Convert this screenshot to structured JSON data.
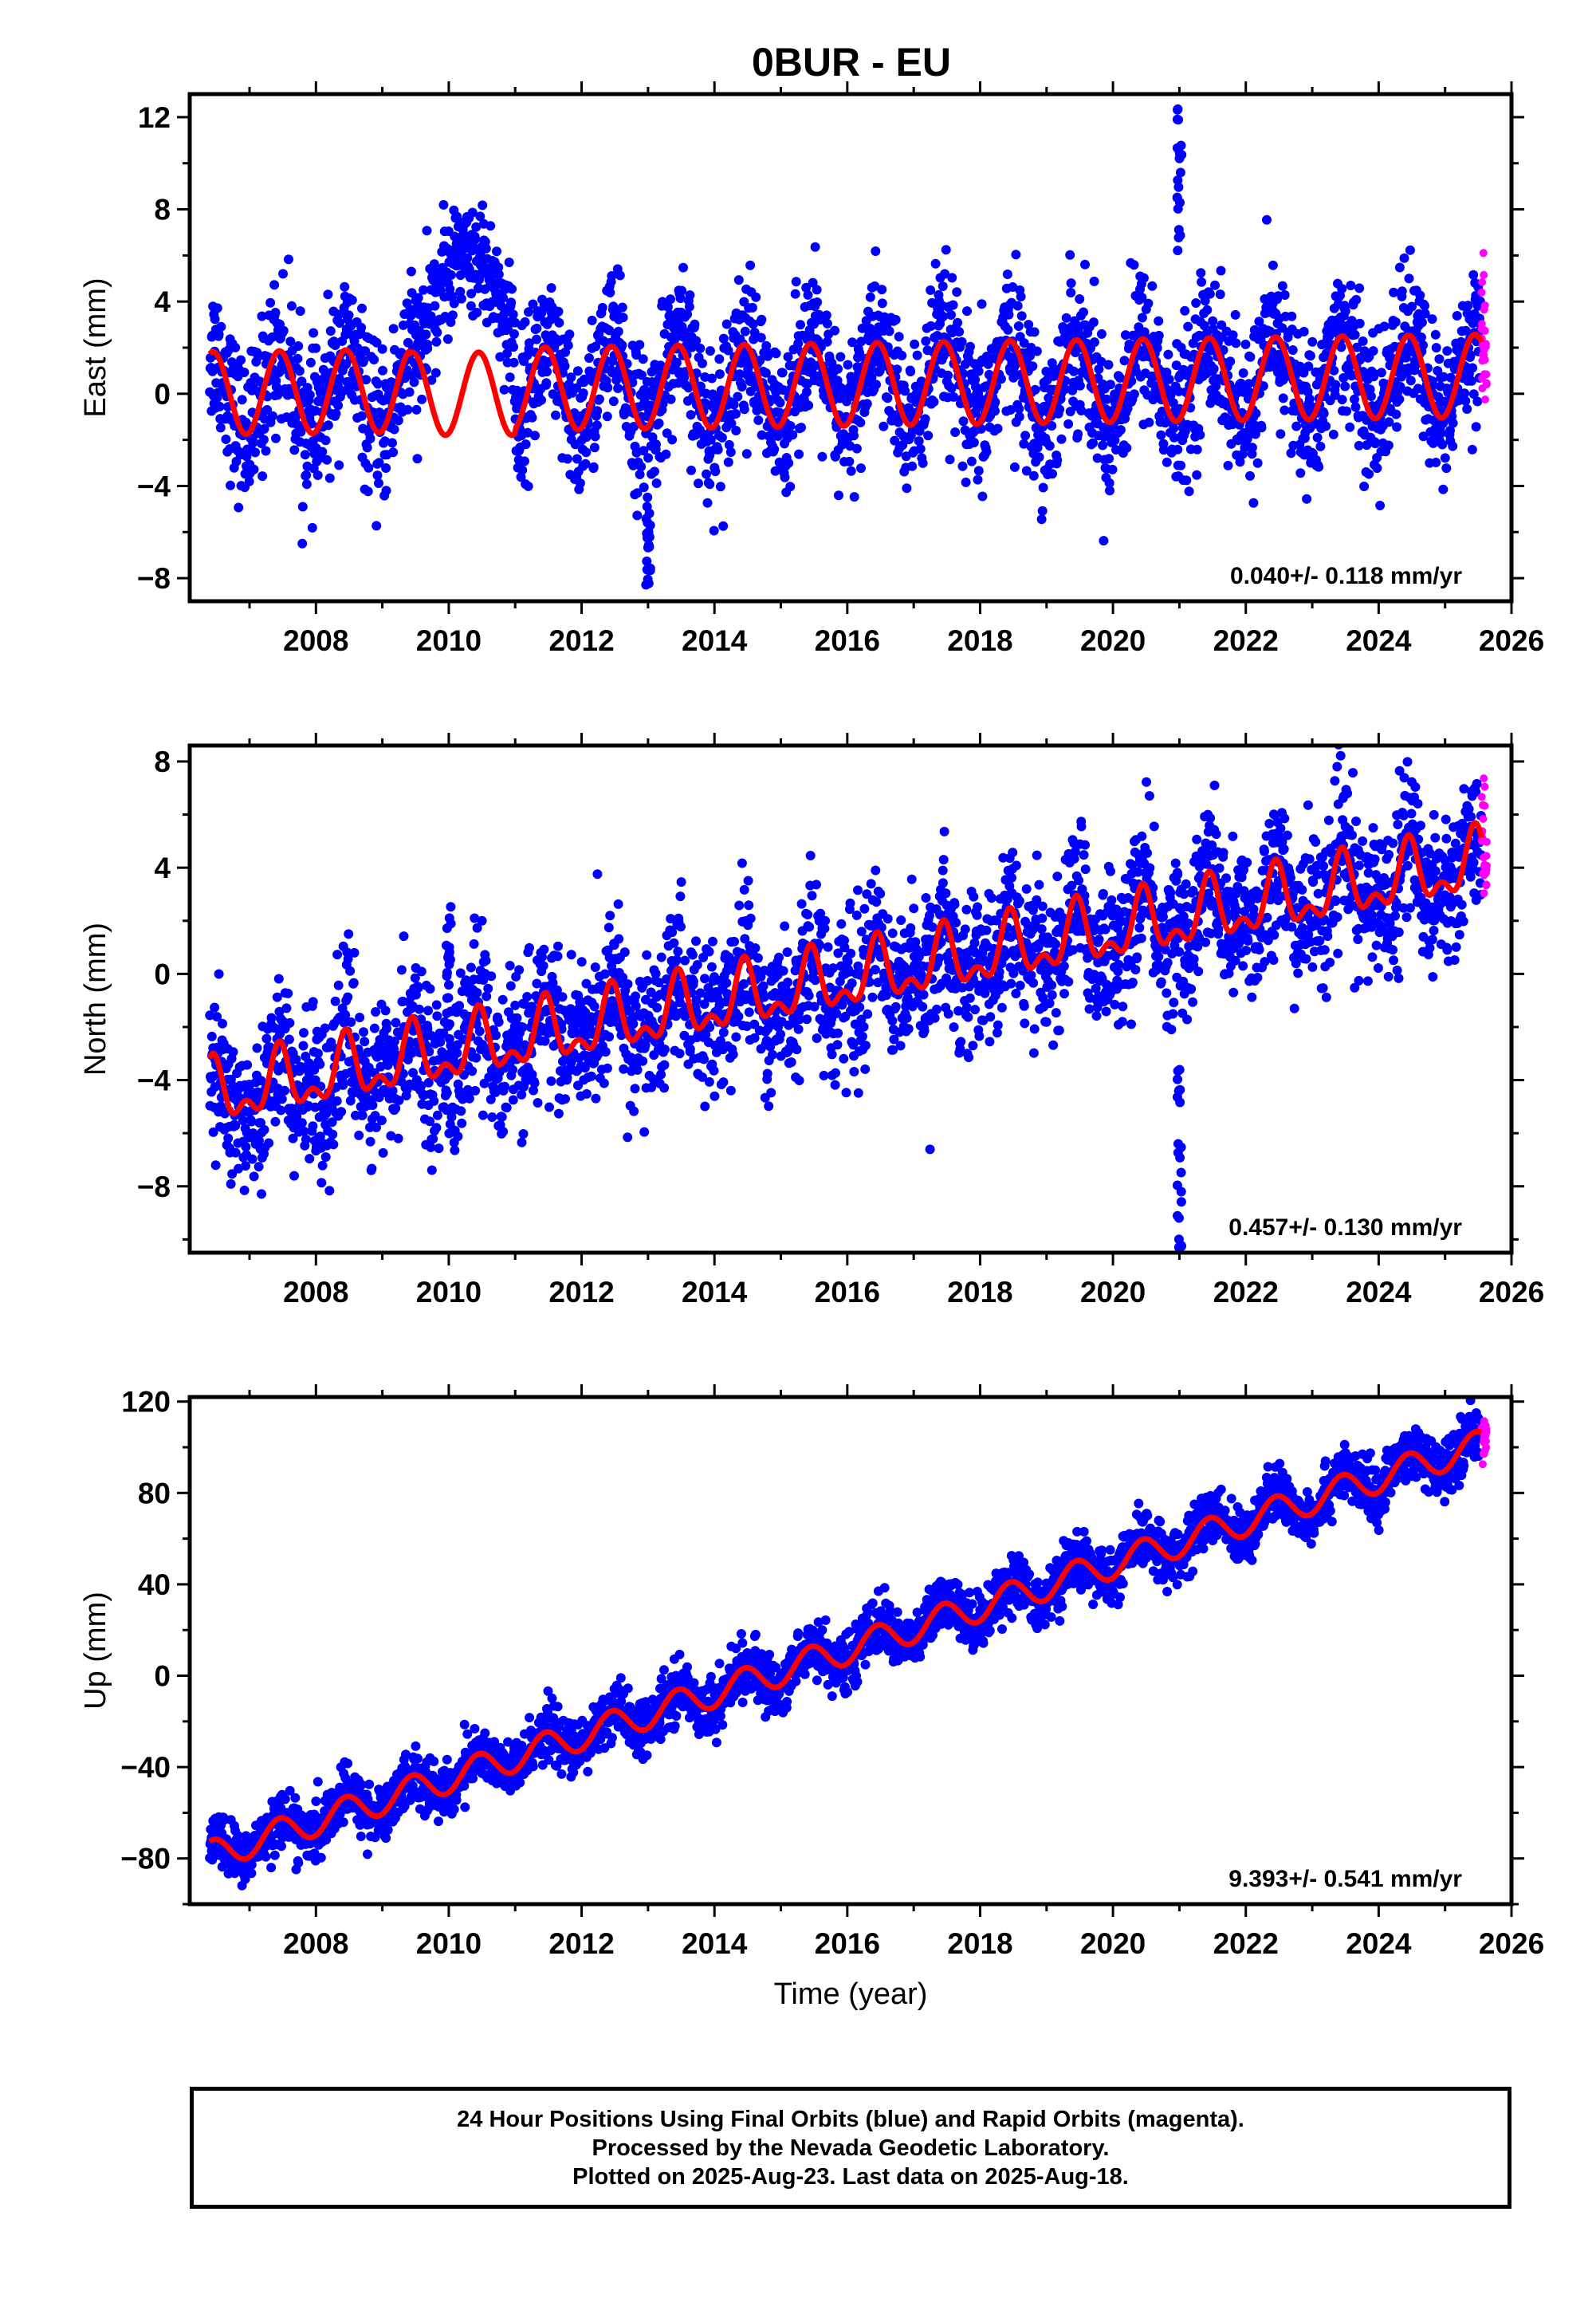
{
  "title": "0BUR - EU",
  "footer": {
    "line1": "24 Hour Positions Using Final Orbits (blue) and Rapid Orbits (magenta).",
    "line2": "Processed by the Nevada Geodetic Laboratory.",
    "line3": "Plotted on 2025-Aug-23. Last data on 2025-Aug-18."
  },
  "colors": {
    "final_orbits": "#0000ff",
    "rapid_orbits": "#ff00ff",
    "model_fit": "#ff0000"
  },
  "chart_data": [
    {
      "type": "scatter",
      "ylabel": "East (mm)",
      "xlabel": "",
      "xlim": [
        2006.1,
        2026.0
      ],
      "ylim": [
        -9,
        13
      ],
      "xticks": [
        2008,
        2010,
        2012,
        2014,
        2016,
        2018,
        2020,
        2022,
        2024,
        2026
      ],
      "yticks": [
        -8,
        -4,
        0,
        4,
        8,
        12
      ],
      "ytick_labels": [
        "−8",
        "−4",
        "0",
        "4",
        "8",
        "12"
      ],
      "rate_label": "0.040+/- 0.118 mm/yr",
      "data_start": 2006.4,
      "data_end_final": 2025.55,
      "data_end_rapid": 2025.63,
      "trend": {
        "slope": 0.04,
        "intercept_2006": 0.0
      },
      "annual_amplitude": 1.8,
      "scatter_sigma": 1.6,
      "fit_gap": [
        2009.4,
        2011.0
      ],
      "offset_event": {
        "start": 2009.6,
        "end": 2011.0,
        "peak": 6.0
      },
      "spikes": [
        {
          "x": 2021.0,
          "ymin": 5.8,
          "ymax": 12.6
        },
        {
          "x": 2013.0,
          "ymin": -8.5,
          "ymax": -4.8
        }
      ],
      "grid": false
    },
    {
      "type": "scatter",
      "ylabel": "North (mm)",
      "xlabel": "",
      "xlim": [
        2006.1,
        2026.0
      ],
      "ylim": [
        -10.5,
        8.6
      ],
      "xticks": [
        2008,
        2010,
        2012,
        2014,
        2016,
        2018,
        2020,
        2022,
        2024,
        2026
      ],
      "yticks": [
        -8,
        -4,
        0,
        4,
        8
      ],
      "ytick_labels": [
        "−8",
        "−4",
        "0",
        "4",
        "8"
      ],
      "rate_label": "0.457+/- 0.130 mm/yr",
      "data_start": 2006.4,
      "data_end_final": 2025.55,
      "data_end_rapid": 2025.63,
      "trend": {
        "slope": 0.457,
        "intercept_2006": -4.8
      },
      "annual_amplitude": 1.0,
      "scatter_sigma": 1.4,
      "fit_gap": null,
      "offset_event": null,
      "spikes": [
        {
          "x": 2021.0,
          "ymin": -10.4,
          "ymax": -3.5
        },
        {
          "x": 2010.0,
          "ymin": -2.0,
          "ymax": 2.6
        }
      ],
      "grid": false
    },
    {
      "type": "scatter",
      "ylabel": "Up (mm)",
      "xlabel": "Time (year)",
      "xlim": [
        2006.1,
        2026.0
      ],
      "ylim": [
        -100,
        122
      ],
      "xticks": [
        2008,
        2010,
        2012,
        2014,
        2016,
        2018,
        2020,
        2022,
        2024,
        2026
      ],
      "yticks": [
        -80,
        -40,
        0,
        40,
        80,
        120
      ],
      "ytick_labels": [
        "−80",
        "−40",
        "0",
        "40",
        "80",
        "120"
      ],
      "rate_label": "9.393+/- 0.541 mm/yr",
      "data_start": 2006.4,
      "data_end_final": 2025.55,
      "data_end_rapid": 2025.63,
      "trend": {
        "slope": 9.393,
        "intercept_2006": -82.5
      },
      "annual_amplitude": 6.5,
      "scatter_sigma": 6.0,
      "fit_gap": null,
      "offset_event": null,
      "spikes": [],
      "grid": false
    }
  ]
}
